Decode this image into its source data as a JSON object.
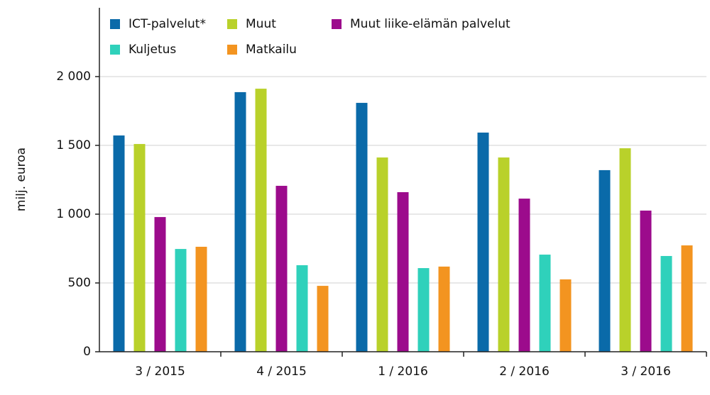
{
  "chart_data": {
    "type": "bar",
    "y_label": "milj. euroa",
    "categories": [
      "3 / 2015",
      "4 / 2015",
      "1 / 2016",
      "2 / 2016",
      "3 / 2016"
    ],
    "series": [
      {
        "name": "ICT-palvelut*",
        "color": "#0a6aa9",
        "values": [
          1572,
          1887,
          1809,
          1593,
          1320
        ]
      },
      {
        "name": "Muut",
        "color": "#b9d12a",
        "values": [
          1510,
          1912,
          1412,
          1412,
          1479
        ]
      },
      {
        "name": "Muut liike-elämän palvelut",
        "color": "#9c0b8c",
        "values": [
          979,
          1206,
          1160,
          1113,
          1026
        ]
      },
      {
        "name": "Kuljetus",
        "color": "#2fd1bb",
        "values": [
          747,
          629,
          608,
          706,
          696
        ]
      },
      {
        "name": "Matkailu",
        "color": "#f39420",
        "values": [
          763,
          479,
          619,
          526,
          773
        ]
      }
    ],
    "ylim": [
      0,
      2500
    ],
    "yticks": [
      0,
      500,
      {
        "value": 1000,
        "label": "1 000"
      },
      {
        "value": 1500,
        "label": "1 500"
      },
      {
        "value": 2000,
        "label": "2 000"
      }
    ],
    "grid": true
  }
}
